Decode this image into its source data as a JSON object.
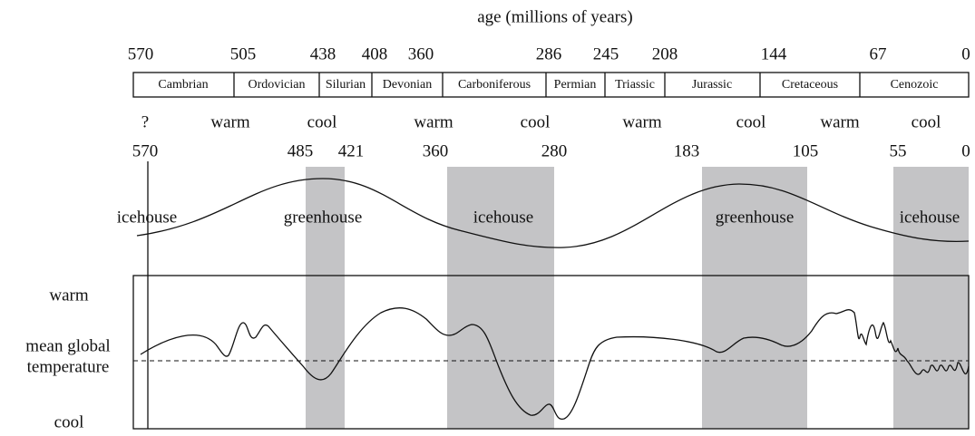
{
  "title": "age (millions of years)",
  "period_ages": [
    570,
    505,
    438,
    408,
    360,
    286,
    245,
    208,
    144,
    67,
    0
  ],
  "periods": [
    "Cambrian",
    "Ordovician",
    "Silurian",
    "Devonian",
    "Carboniferous",
    "Permian",
    "Triassic",
    "Jurassic",
    "Cretaceous",
    "Cenozoic"
  ],
  "climate": [
    "?",
    "warm",
    "cool",
    "warm",
    "cool",
    "warm",
    "cool",
    "warm",
    "cool"
  ],
  "cycle_ages": [
    570,
    485,
    421,
    360,
    280,
    183,
    105,
    55,
    0
  ],
  "cycles": [
    "icehouse",
    "greenhouse",
    "icehouse",
    "greenhouse",
    "icehouse"
  ],
  "temperature_axis": {
    "warm": "warm",
    "mean": [
      "mean global",
      "temperature"
    ],
    "cool": "cool"
  }
}
